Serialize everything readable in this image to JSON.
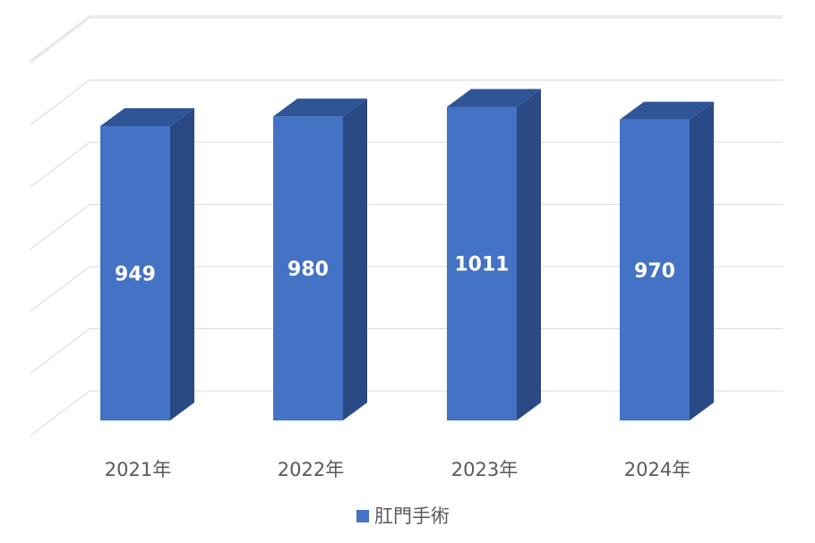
{
  "chart_data": {
    "type": "bar",
    "categories": [
      "2021年",
      "2022年",
      "2023年",
      "2024年"
    ],
    "series": [
      {
        "name": "肛門手術",
        "values": [
          949,
          980,
          1011,
          970
        ]
      }
    ],
    "data_labels": [
      "949",
      "980",
      "1011",
      "970"
    ],
    "ylim": [
      0,
      1200
    ],
    "grid": true,
    "legend": "bottom",
    "three_d": true,
    "colors": {
      "front": "#4472C4",
      "top": "#2F5597",
      "side": "#2A4A86",
      "grid": "#D9D9D9",
      "text": "#595959"
    }
  }
}
